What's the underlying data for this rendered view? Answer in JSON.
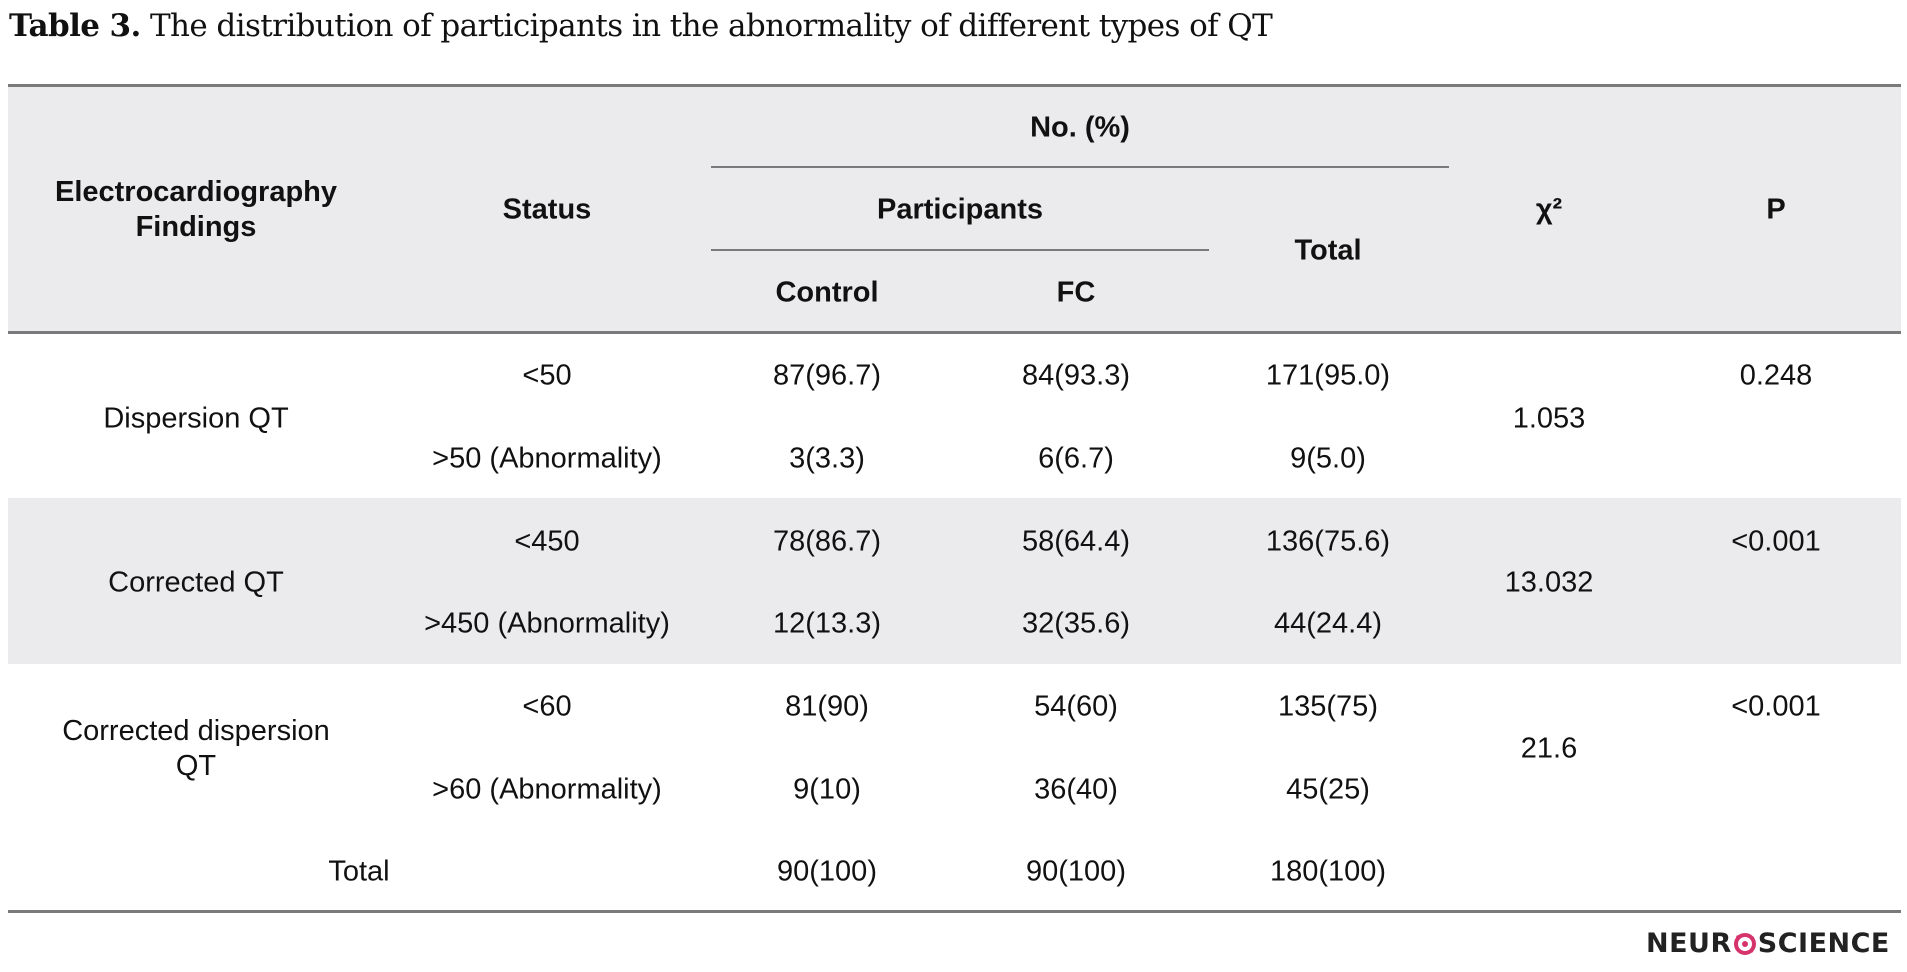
{
  "caption": {
    "label": "Table 3.",
    "text": " The distribution of participants in the abnormality of different types of QT"
  },
  "header": {
    "findings": "Electrocardiography Findings",
    "status": "Status",
    "no_pct": "No. (%)",
    "participants": "Participants",
    "control": "Control",
    "fc": "FC",
    "total": "Total",
    "chi2": "χ²",
    "p": "P"
  },
  "rows": [
    {
      "finding": "Dispersion QT",
      "chi2": "1.053",
      "p": "0.248",
      "statuses": [
        {
          "status": "<50",
          "control": "87(96.7)",
          "fc": "84(93.3)",
          "total": "171(95.0)"
        },
        {
          "status": ">50 (Abnormality)",
          "control": "3(3.3)",
          "fc": "6(6.7)",
          "total": "9(5.0)"
        }
      ]
    },
    {
      "finding": "Corrected QT",
      "chi2": "13.032",
      "p": "<0.001",
      "statuses": [
        {
          "status": "<450",
          "control": "78(86.7)",
          "fc": "58(64.4)",
          "total": "136(75.6)"
        },
        {
          "status": ">450 (Abnormality)",
          "control": "12(13.3)",
          "fc": "32(35.6)",
          "total": "44(24.4)"
        }
      ]
    },
    {
      "finding": "Corrected dispersion QT",
      "chi2": "21.6",
      "p": "<0.001",
      "statuses": [
        {
          "status": "<60",
          "control": "81(90)",
          "fc": "54(60)",
          "total": "135(75)"
        },
        {
          "status": ">60 (Abnormality)",
          "control": "9(10)",
          "fc": "36(40)",
          "total": "45(25)"
        }
      ]
    }
  ],
  "total_row": {
    "label": "Total",
    "control": "90(100)",
    "fc": "90(100)",
    "total": "180(100)"
  },
  "logo": {
    "left": "NEUR",
    "right": "SCIENCE",
    "accent_color": "#d6336c"
  }
}
